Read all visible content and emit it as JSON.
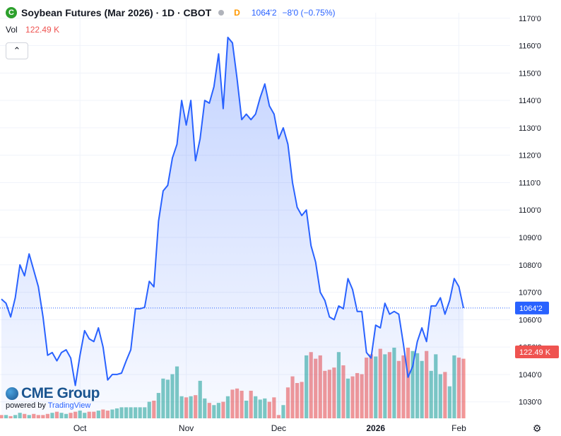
{
  "header": {
    "symbol_badge": "C",
    "title": "Soybean Futures (Mar 2026) · 1D · CBOT",
    "flag": "D",
    "last": "1064'2",
    "change": "−8'0 (−0.75%)",
    "vol_label": "Vol",
    "vol_value": "122.49 K",
    "collapse_icon": "chevron-up-icon"
  },
  "branding": {
    "cme_logo": "CME Group",
    "powered_by": "powered by",
    "tradingview": "TradingView"
  },
  "colors": {
    "line": "#2962ff",
    "area": "#2962ff",
    "vol_up": "#26a69a",
    "vol_down": "#ef5350",
    "price_tag": "#2962ff",
    "vol_tag": "#ef5350",
    "grid": "#f0f3fa"
  },
  "price_tag": "1064'2",
  "volume_tag": "122.49 K",
  "chart_data": {
    "type": "line",
    "title": "Soybean Futures (Mar 2026) · 1D · CBOT",
    "x_tick_labels": [
      "Oct",
      "Nov",
      "Dec",
      "2026",
      "Feb"
    ],
    "y_tick_labels": [
      "1170'0",
      "1160'0",
      "1150'0",
      "1140'0",
      "1130'0",
      "1120'0",
      "1110'0",
      "1100'0",
      "1090'0",
      "1080'0",
      "1070'0",
      "1060'0",
      "1050'0",
      "1040'0",
      "1030'0"
    ],
    "ylim": [
      1024,
      1172
    ],
    "last_price_line": 1064.25,
    "grid": true,
    "series": [
      {
        "type": "line",
        "values": [
          1067.5,
          1066,
          1061,
          1068,
          1080,
          1076,
          1084,
          1078,
          1072,
          1061,
          1047,
          1048,
          1045,
          1048,
          1049,
          1046,
          1036,
          1047,
          1056,
          1053,
          1052,
          1057,
          1050,
          1038,
          1040,
          1040,
          1040.5,
          1045,
          1049,
          1064,
          1064,
          1064.5,
          1074,
          1072,
          1096,
          1107,
          1109,
          1119,
          1124,
          1140,
          1131,
          1140,
          1118,
          1126,
          1140,
          1139,
          1145,
          1157,
          1137,
          1163,
          1161,
          1148,
          1133,
          1135,
          1133,
          1135,
          1141,
          1146,
          1138,
          1135,
          1126,
          1130,
          1124,
          1110,
          1101,
          1098,
          1100,
          1087,
          1081,
          1070,
          1067,
          1061,
          1060,
          1065,
          1064,
          1075,
          1071,
          1063,
          1063,
          1048,
          1046,
          1058,
          1057,
          1066,
          1062,
          1063,
          1062,
          1051,
          1039,
          1043,
          1052,
          1057,
          1052,
          1065,
          1065,
          1068,
          1062,
          1067,
          1075,
          1072,
          1064.25
        ]
      },
      {
        "type": "volume",
        "values": [
          3,
          3,
          2,
          3,
          5,
          4,
          3,
          4,
          3,
          3,
          4,
          5,
          6,
          5,
          4,
          5,
          6,
          7,
          5,
          6,
          6,
          7,
          8,
          7,
          8,
          9,
          10,
          10,
          10,
          10,
          10,
          10,
          15,
          16,
          23,
          36,
          35,
          40,
          47,
          20,
          19,
          20,
          21,
          34,
          18,
          14,
          12,
          14,
          15,
          20,
          26,
          27,
          25,
          16,
          25,
          20,
          17,
          18,
          15,
          19,
          3,
          12,
          28,
          38,
          32,
          33,
          57,
          60,
          54,
          57,
          43,
          44,
          46,
          60,
          48,
          36,
          38,
          41,
          40,
          55,
          58,
          56,
          63,
          58,
          60,
          64,
          52,
          57,
          64,
          61,
          59,
          52,
          61,
          43,
          58,
          40,
          42,
          29,
          57,
          55,
          54
        ],
        "up": [
          0,
          1,
          0,
          1,
          1,
          0,
          1,
          0,
          0,
          0,
          0,
          1,
          0,
          1,
          1,
          0,
          0,
          1,
          1,
          0,
          0,
          1,
          0,
          0,
          1,
          1,
          1,
          1,
          1,
          1,
          1,
          1,
          1,
          0,
          1,
          1,
          1,
          1,
          1,
          1,
          0,
          1,
          0,
          1,
          1,
          0,
          1,
          1,
          0,
          1,
          0,
          0,
          0,
          1,
          0,
          1,
          1,
          1,
          0,
          0,
          0,
          1,
          0,
          0,
          0,
          0,
          1,
          0,
          0,
          0,
          0,
          0,
          0,
          1,
          0,
          1,
          0,
          0,
          0,
          0,
          0,
          1,
          0,
          1,
          0,
          1,
          0,
          0,
          0,
          1,
          1,
          1,
          0,
          1,
          1,
          1,
          0,
          1,
          1,
          0,
          0
        ]
      }
    ]
  }
}
